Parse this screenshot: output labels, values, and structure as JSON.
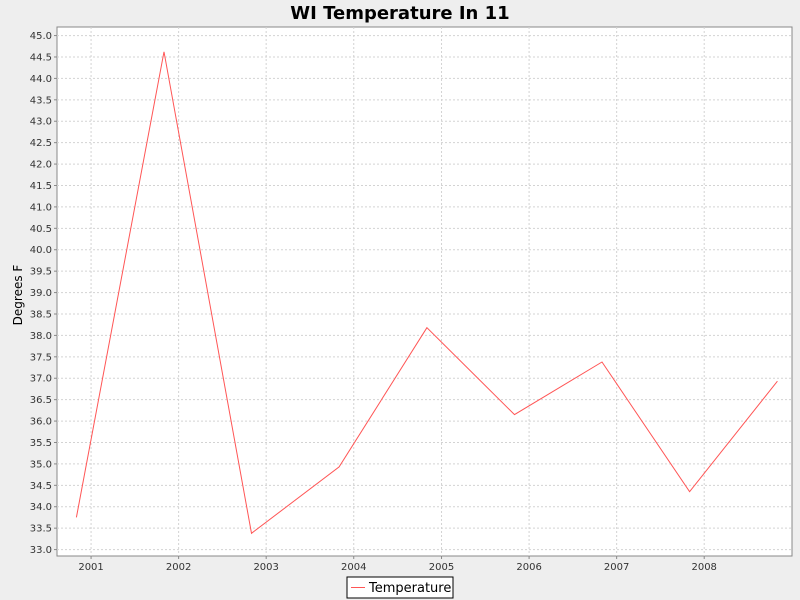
{
  "chart_data": {
    "type": "line",
    "title": "WI Temperature In 11",
    "xlabel": "",
    "ylabel": "Degrees F",
    "x_tick_labels": [
      "2001",
      "2002",
      "2003",
      "2004",
      "2005",
      "2006",
      "2007",
      "2008"
    ],
    "y_tick_labels": [
      "33.0",
      "33.5",
      "34.0",
      "34.5",
      "35.0",
      "35.5",
      "36.0",
      "36.5",
      "37.0",
      "37.5",
      "38.0",
      "38.5",
      "39.0",
      "39.5",
      "40.0",
      "40.5",
      "41.0",
      "41.5",
      "42.0",
      "42.5",
      "43.0",
      "43.5",
      "44.0",
      "44.5",
      "45.0"
    ],
    "ylim": [
      32.85,
      45.2
    ],
    "xlim": [
      "2000-08-12",
      "2009-01-01"
    ],
    "grid": true,
    "legend_position": "bottom",
    "series": [
      {
        "name": "Temperature",
        "color": "#ff5555",
        "x": [
          "2000-11-01",
          "2001-11-01",
          "2002-11-01",
          "2003-11-01",
          "2004-11-01",
          "2005-11-01",
          "2006-11-01",
          "2007-11-01",
          "2008-11-01"
        ],
        "y": [
          33.75,
          44.62,
          33.38,
          34.93,
          38.18,
          36.15,
          37.38,
          34.35,
          36.93
        ]
      }
    ]
  },
  "colors": {
    "background": "#eeeeee",
    "plot_background": "#ffffff",
    "grid": "#d3d3d3",
    "axis": "#888888"
  }
}
